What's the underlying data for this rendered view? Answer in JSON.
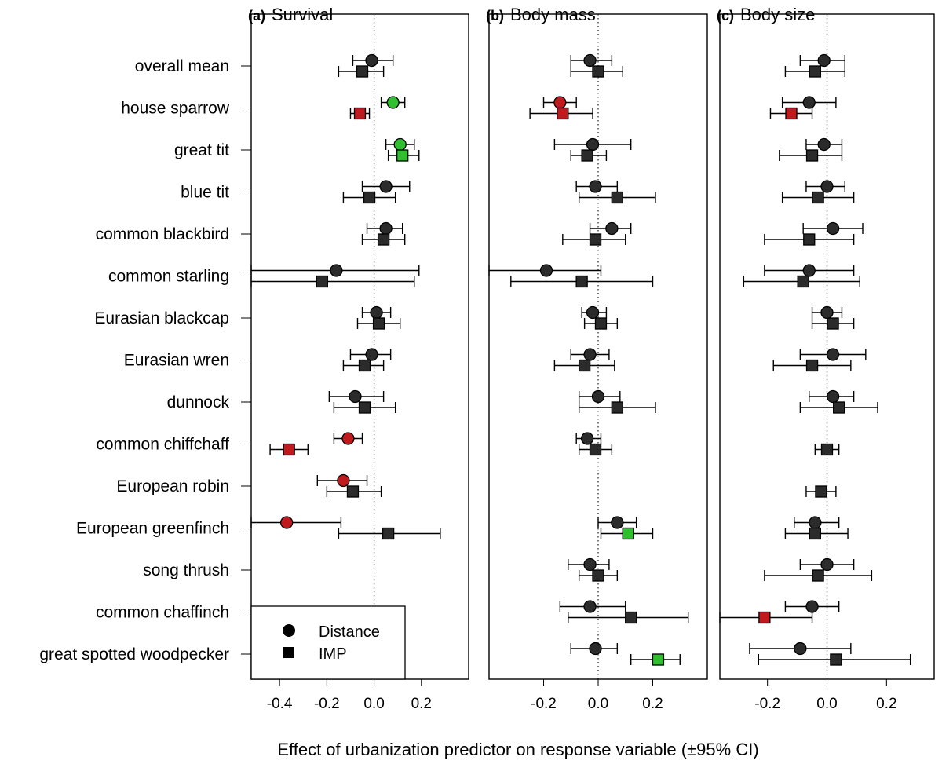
{
  "xlabel": "Effect of urbanization predictor on response variable (±95% CI)",
  "legend": {
    "distance_label": "Distance",
    "imp_label": "IMP"
  },
  "colors": {
    "neutral": "#2b2b2b",
    "negative": "#c0191e",
    "positive": "#2fbf2f"
  },
  "species": [
    "overall mean",
    "house sparrow",
    "great tit",
    "blue tit",
    "common blackbird",
    "common starling",
    "Eurasian blackcap",
    "Eurasian wren",
    "dunnock",
    "common chiffchaff",
    "European robin",
    "European greenfinch",
    "song thrush",
    "common chaffinch",
    "great spotted woodpecker"
  ],
  "chart_data": [
    {
      "type": "scatter",
      "letter": "(a)",
      "title": "Survival",
      "xlim": [
        -0.52,
        0.4
      ],
      "xticks": [
        -0.4,
        -0.2,
        0.0,
        0.2
      ],
      "xtick_labels": [
        "-0.4",
        "-0.2",
        "0.0",
        "0.2"
      ],
      "series": [
        {
          "name": "Distance",
          "marker": "circle",
          "points": [
            {
              "species": "overall mean",
              "est": -0.01,
              "lo": -0.09,
              "hi": 0.08,
              "color": "neutral"
            },
            {
              "species": "house sparrow",
              "est": 0.08,
              "lo": 0.03,
              "hi": 0.13,
              "color": "positive"
            },
            {
              "species": "great tit",
              "est": 0.11,
              "lo": 0.05,
              "hi": 0.17,
              "color": "positive"
            },
            {
              "species": "blue tit",
              "est": 0.05,
              "lo": -0.05,
              "hi": 0.15,
              "color": "neutral"
            },
            {
              "species": "common blackbird",
              "est": 0.05,
              "lo": -0.03,
              "hi": 0.12,
              "color": "neutral"
            },
            {
              "species": "common starling",
              "est": -0.16,
              "lo": -0.52,
              "hi": 0.19,
              "color": "neutral"
            },
            {
              "species": "Eurasian blackcap",
              "est": 0.01,
              "lo": -0.05,
              "hi": 0.07,
              "color": "neutral"
            },
            {
              "species": "Eurasian wren",
              "est": -0.01,
              "lo": -0.1,
              "hi": 0.07,
              "color": "neutral"
            },
            {
              "species": "dunnock",
              "est": -0.08,
              "lo": -0.19,
              "hi": 0.04,
              "color": "neutral"
            },
            {
              "species": "common chiffchaff",
              "est": -0.11,
              "lo": -0.17,
              "hi": -0.05,
              "color": "negative"
            },
            {
              "species": "European robin",
              "est": -0.13,
              "lo": -0.24,
              "hi": -0.03,
              "color": "negative"
            },
            {
              "species": "European greenfinch",
              "est": -0.37,
              "lo": -0.52,
              "hi": -0.14,
              "color": "negative"
            }
          ]
        },
        {
          "name": "IMP",
          "marker": "square",
          "points": [
            {
              "species": "overall mean",
              "est": -0.05,
              "lo": -0.15,
              "hi": 0.04,
              "color": "neutral"
            },
            {
              "species": "house sparrow",
              "est": -0.06,
              "lo": -0.1,
              "hi": -0.02,
              "color": "negative"
            },
            {
              "species": "great tit",
              "est": 0.12,
              "lo": 0.06,
              "hi": 0.19,
              "color": "positive"
            },
            {
              "species": "blue tit",
              "est": -0.02,
              "lo": -0.13,
              "hi": 0.09,
              "color": "neutral"
            },
            {
              "species": "common blackbird",
              "est": 0.04,
              "lo": -0.05,
              "hi": 0.13,
              "color": "neutral"
            },
            {
              "species": "common starling",
              "est": -0.22,
              "lo": -0.52,
              "hi": 0.17,
              "color": "neutral"
            },
            {
              "species": "Eurasian blackcap",
              "est": 0.02,
              "lo": -0.07,
              "hi": 0.11,
              "color": "neutral"
            },
            {
              "species": "Eurasian wren",
              "est": -0.04,
              "lo": -0.13,
              "hi": 0.04,
              "color": "neutral"
            },
            {
              "species": "dunnock",
              "est": -0.04,
              "lo": -0.17,
              "hi": 0.09,
              "color": "neutral"
            },
            {
              "species": "common chiffchaff",
              "est": -0.36,
              "lo": -0.44,
              "hi": -0.28,
              "color": "negative"
            },
            {
              "species": "European robin",
              "est": -0.09,
              "lo": -0.2,
              "hi": 0.03,
              "color": "neutral"
            },
            {
              "species": "European greenfinch",
              "est": 0.06,
              "lo": -0.15,
              "hi": 0.28,
              "color": "neutral"
            }
          ]
        }
      ]
    },
    {
      "type": "scatter",
      "letter": "(b)",
      "title": "Body mass",
      "xlim": [
        -0.4,
        0.4
      ],
      "xticks": [
        -0.2,
        0.0,
        0.2
      ],
      "xtick_labels": [
        "-0.2",
        "0.0",
        "0.2"
      ],
      "series": [
        {
          "name": "Distance",
          "marker": "circle",
          "points": [
            {
              "species": "overall mean",
              "est": -0.03,
              "lo": -0.1,
              "hi": 0.05,
              "color": "neutral"
            },
            {
              "species": "house sparrow",
              "est": -0.14,
              "lo": -0.2,
              "hi": -0.08,
              "color": "negative"
            },
            {
              "species": "great tit",
              "est": -0.02,
              "lo": -0.16,
              "hi": 0.12,
              "color": "neutral"
            },
            {
              "species": "blue tit",
              "est": -0.01,
              "lo": -0.08,
              "hi": 0.07,
              "color": "neutral"
            },
            {
              "species": "common blackbird",
              "est": 0.05,
              "lo": -0.03,
              "hi": 0.12,
              "color": "neutral"
            },
            {
              "species": "common starling",
              "est": -0.19,
              "lo": -0.4,
              "hi": 0.01,
              "color": "neutral"
            },
            {
              "species": "Eurasian blackcap",
              "est": -0.02,
              "lo": -0.06,
              "hi": 0.03,
              "color": "neutral"
            },
            {
              "species": "Eurasian wren",
              "est": -0.03,
              "lo": -0.1,
              "hi": 0.04,
              "color": "neutral"
            },
            {
              "species": "dunnock",
              "est": 0.0,
              "lo": -0.07,
              "hi": 0.08,
              "color": "neutral"
            },
            {
              "species": "common chiffchaff",
              "est": -0.04,
              "lo": -0.08,
              "hi": 0.01,
              "color": "neutral"
            },
            {
              "species": "European greenfinch",
              "est": 0.07,
              "lo": 0.0,
              "hi": 0.14,
              "color": "neutral"
            },
            {
              "species": "song thrush",
              "est": -0.03,
              "lo": -0.11,
              "hi": 0.04,
              "color": "neutral"
            },
            {
              "species": "common chaffinch",
              "est": -0.03,
              "lo": -0.14,
              "hi": 0.1,
              "color": "neutral"
            },
            {
              "species": "great spotted woodpecker",
              "est": -0.01,
              "lo": -0.1,
              "hi": 0.07,
              "color": "neutral"
            }
          ]
        },
        {
          "name": "IMP",
          "marker": "square",
          "points": [
            {
              "species": "overall mean",
              "est": 0.0,
              "lo": -0.1,
              "hi": 0.09,
              "color": "neutral"
            },
            {
              "species": "house sparrow",
              "est": -0.13,
              "lo": -0.25,
              "hi": -0.02,
              "color": "negative"
            },
            {
              "species": "great tit",
              "est": -0.04,
              "lo": -0.1,
              "hi": 0.03,
              "color": "neutral"
            },
            {
              "species": "blue tit",
              "est": 0.07,
              "lo": -0.07,
              "hi": 0.21,
              "color": "neutral"
            },
            {
              "species": "common blackbird",
              "est": -0.01,
              "lo": -0.13,
              "hi": 0.1,
              "color": "neutral"
            },
            {
              "species": "common starling",
              "est": -0.06,
              "lo": -0.32,
              "hi": 0.2,
              "color": "neutral"
            },
            {
              "species": "Eurasian blackcap",
              "est": 0.01,
              "lo": -0.05,
              "hi": 0.07,
              "color": "neutral"
            },
            {
              "species": "Eurasian wren",
              "est": -0.05,
              "lo": -0.16,
              "hi": 0.06,
              "color": "neutral"
            },
            {
              "species": "dunnock",
              "est": 0.07,
              "lo": -0.07,
              "hi": 0.21,
              "color": "neutral"
            },
            {
              "species": "common chiffchaff",
              "est": -0.01,
              "lo": -0.07,
              "hi": 0.05,
              "color": "neutral"
            },
            {
              "species": "European greenfinch",
              "est": 0.11,
              "lo": 0.01,
              "hi": 0.2,
              "color": "positive"
            },
            {
              "species": "song thrush",
              "est": 0.0,
              "lo": -0.07,
              "hi": 0.07,
              "color": "neutral"
            },
            {
              "species": "common chaffinch",
              "est": 0.12,
              "lo": -0.11,
              "hi": 0.33,
              "color": "neutral"
            },
            {
              "species": "great spotted woodpecker",
              "est": 0.22,
              "lo": 0.12,
              "hi": 0.3,
              "color": "positive"
            }
          ]
        }
      ]
    },
    {
      "type": "scatter",
      "letter": "(c)",
      "title": "Body size",
      "xlim": [
        -0.36,
        0.36
      ],
      "xticks": [
        -0.2,
        0.0,
        0.2
      ],
      "xtick_labels": [
        "-0.2",
        "0.0",
        "0.2"
      ],
      "series": [
        {
          "name": "Distance",
          "marker": "circle",
          "points": [
            {
              "species": "overall mean",
              "est": -0.01,
              "lo": -0.09,
              "hi": 0.06,
              "color": "neutral"
            },
            {
              "species": "house sparrow",
              "est": -0.06,
              "lo": -0.15,
              "hi": 0.03,
              "color": "neutral"
            },
            {
              "species": "great tit",
              "est": -0.01,
              "lo": -0.07,
              "hi": 0.05,
              "color": "neutral"
            },
            {
              "species": "blue tit",
              "est": 0.0,
              "lo": -0.07,
              "hi": 0.06,
              "color": "neutral"
            },
            {
              "species": "common blackbird",
              "est": 0.02,
              "lo": -0.08,
              "hi": 0.12,
              "color": "neutral"
            },
            {
              "species": "common starling",
              "est": -0.06,
              "lo": -0.21,
              "hi": 0.09,
              "color": "neutral"
            },
            {
              "species": "Eurasian blackcap",
              "est": 0.0,
              "lo": -0.05,
              "hi": 0.05,
              "color": "neutral"
            },
            {
              "species": "Eurasian wren",
              "est": 0.02,
              "lo": -0.09,
              "hi": 0.13,
              "color": "neutral"
            },
            {
              "species": "dunnock",
              "est": 0.02,
              "lo": -0.06,
              "hi": 0.09,
              "color": "neutral"
            },
            {
              "species": "European greenfinch",
              "est": -0.04,
              "lo": -0.11,
              "hi": 0.04,
              "color": "neutral"
            },
            {
              "species": "song thrush",
              "est": 0.0,
              "lo": -0.09,
              "hi": 0.09,
              "color": "neutral"
            },
            {
              "species": "common chaffinch",
              "est": -0.05,
              "lo": -0.14,
              "hi": 0.04,
              "color": "neutral"
            },
            {
              "species": "great spotted woodpecker",
              "est": -0.09,
              "lo": -0.26,
              "hi": 0.08,
              "color": "neutral"
            }
          ]
        },
        {
          "name": "IMP",
          "marker": "square",
          "points": [
            {
              "species": "overall mean",
              "est": -0.04,
              "lo": -0.14,
              "hi": 0.06,
              "color": "neutral"
            },
            {
              "species": "house sparrow",
              "est": -0.12,
              "lo": -0.19,
              "hi": -0.05,
              "color": "negative"
            },
            {
              "species": "great tit",
              "est": -0.05,
              "lo": -0.16,
              "hi": 0.05,
              "color": "neutral"
            },
            {
              "species": "blue tit",
              "est": -0.03,
              "lo": -0.15,
              "hi": 0.09,
              "color": "neutral"
            },
            {
              "species": "common blackbird",
              "est": -0.06,
              "lo": -0.21,
              "hi": 0.09,
              "color": "neutral"
            },
            {
              "species": "common starling",
              "est": -0.08,
              "lo": -0.28,
              "hi": 0.11,
              "color": "neutral"
            },
            {
              "species": "Eurasian blackcap",
              "est": 0.02,
              "lo": -0.05,
              "hi": 0.09,
              "color": "neutral"
            },
            {
              "species": "Eurasian wren",
              "est": -0.05,
              "lo": -0.18,
              "hi": 0.08,
              "color": "neutral"
            },
            {
              "species": "dunnock",
              "est": 0.04,
              "lo": -0.09,
              "hi": 0.17,
              "color": "neutral"
            },
            {
              "species": "common chiffchaff",
              "est": 0.0,
              "lo": -0.04,
              "hi": 0.04,
              "color": "neutral"
            },
            {
              "species": "European robin",
              "est": -0.02,
              "lo": -0.07,
              "hi": 0.03,
              "color": "neutral"
            },
            {
              "species": "European greenfinch",
              "est": -0.04,
              "lo": -0.14,
              "hi": 0.07,
              "color": "neutral"
            },
            {
              "species": "song thrush",
              "est": -0.03,
              "lo": -0.21,
              "hi": 0.15,
              "color": "neutral"
            },
            {
              "species": "common chaffinch",
              "est": -0.21,
              "lo": -0.36,
              "hi": -0.05,
              "color": "negative"
            },
            {
              "species": "great spotted woodpecker",
              "est": 0.03,
              "lo": -0.23,
              "hi": 0.28,
              "color": "neutral"
            }
          ]
        }
      ]
    }
  ]
}
